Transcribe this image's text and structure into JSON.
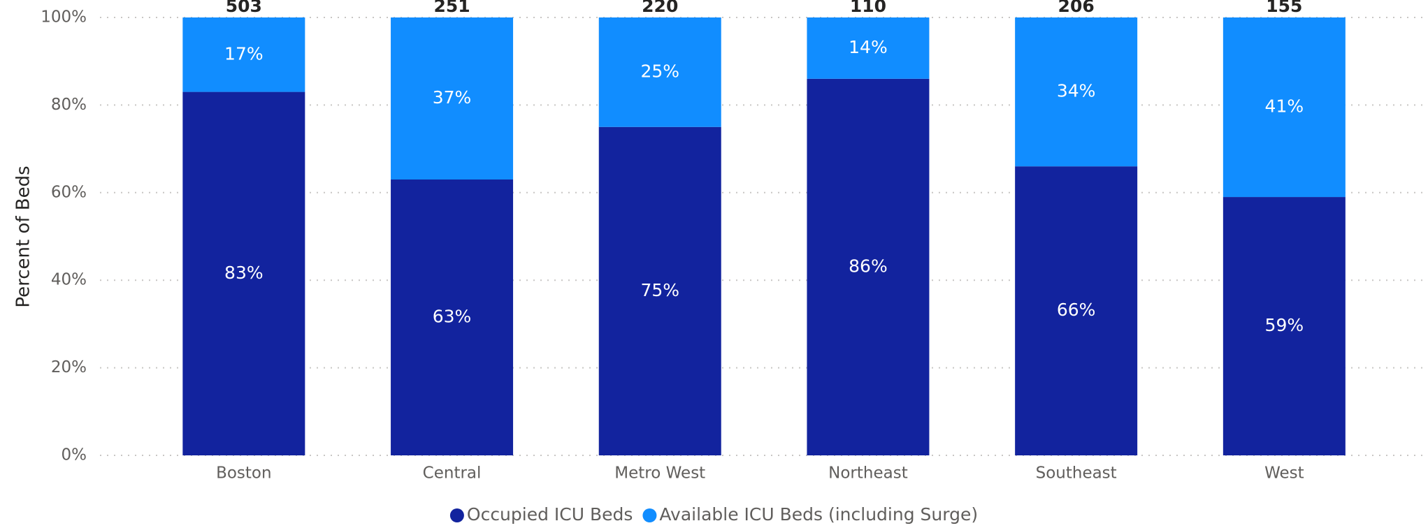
{
  "chart_data": {
    "type": "stacked_bar_100",
    "y_label": "Percent of Beds",
    "categories": [
      "Boston",
      "Central",
      "Metro West",
      "Northeast",
      "Southeast",
      "West"
    ],
    "totals": [
      503,
      251,
      220,
      110,
      206,
      155
    ],
    "series": [
      {
        "name": "Occupied ICU Beds",
        "color": "#12239e",
        "values": [
          83,
          63,
          75,
          86,
          66,
          59
        ],
        "value_labels": [
          "83%",
          "63%",
          "75%",
          "86%",
          "66%",
          "59%"
        ]
      },
      {
        "name": "Available ICU Beds (including Surge)",
        "color": "#118dff",
        "values": [
          17,
          37,
          25,
          14,
          34,
          41
        ],
        "value_labels": [
          "17%",
          "37%",
          "25%",
          "14%",
          "34%",
          "41%"
        ]
      }
    ],
    "ylim": [
      0,
      100
    ],
    "yticks": [
      {
        "value": 0,
        "label": "0%"
      },
      {
        "value": 20,
        "label": "20%"
      },
      {
        "value": 40,
        "label": "40%"
      },
      {
        "value": 60,
        "label": "60%"
      },
      {
        "value": 80,
        "label": "80%"
      },
      {
        "value": 100,
        "label": "100%"
      }
    ],
    "grid": true
  }
}
